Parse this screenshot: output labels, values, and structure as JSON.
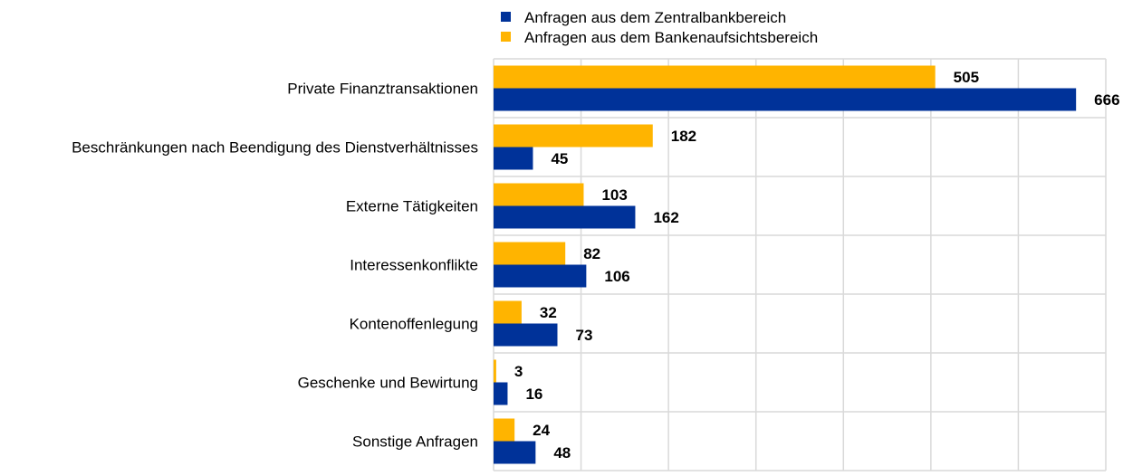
{
  "chart_data": {
    "type": "bar",
    "orientation": "horizontal",
    "categories": [
      "Private Finanztransaktionen",
      "Beschränkungen nach Beendigung des Dienstverhältnisses",
      "Externe Tätigkeiten",
      "Interessenkonflikte",
      "Kontenoffenlegung",
      "Geschenke und Bewirtung",
      "Sonstige Anfragen"
    ],
    "series": [
      {
        "name": "Anfragen aus dem Bankenaufsichtsbereich",
        "color": "#FFB400",
        "values": [
          505,
          182,
          103,
          82,
          32,
          3,
          24
        ]
      },
      {
        "name": "Anfragen aus dem Zentralbankbereich",
        "color": "#003299",
        "values": [
          666,
          45,
          162,
          106,
          73,
          16,
          48
        ]
      }
    ],
    "legend_order": [
      1,
      0
    ],
    "legend_position": "top",
    "xlim": [
      0,
      700
    ],
    "x_grid_step": 100,
    "grid": true,
    "data_labels": true,
    "title": "",
    "xlabel": "",
    "ylabel": ""
  }
}
